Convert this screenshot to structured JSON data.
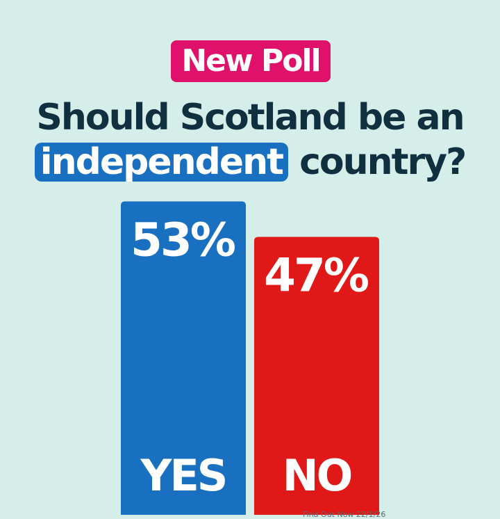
{
  "header": {
    "badge": "New Poll",
    "title_line1": "Should Scotland be an",
    "title_highlight": "independent",
    "title_rest": "country?"
  },
  "chart_data": {
    "type": "bar",
    "categories": [
      "YES",
      "NO"
    ],
    "values": [
      53,
      47
    ],
    "value_labels": [
      "53%",
      "47%"
    ],
    "colors": [
      "#1a70c0",
      "#e11818"
    ],
    "ylim": [
      0,
      100
    ]
  },
  "footer": {
    "source": "Find Out Now 22/1/26"
  }
}
